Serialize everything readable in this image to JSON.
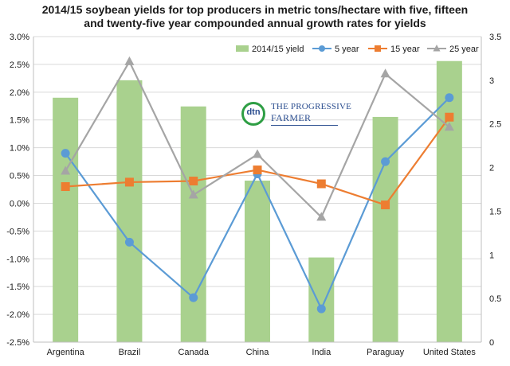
{
  "chart_data": {
    "type": "bar",
    "title_lines": [
      "2014/15 soybean yields for top producers in metric tons/hectare with five, fifteen",
      "and twenty-five year compounded annual growth rates for yields"
    ],
    "categories": [
      "Argentina",
      "Brazil",
      "Canada",
      "China",
      "India",
      "Paraguay",
      "United States"
    ],
    "left_axis": {
      "min": -0.025,
      "max": 0.03,
      "step": 0.005,
      "tick_labels": [
        "-2.5%",
        "-2.0%",
        "-1.5%",
        "-1.0%",
        "-0.5%",
        "0.0%",
        "0.5%",
        "1.0%",
        "1.5%",
        "2.0%",
        "2.5%",
        "3.0%"
      ]
    },
    "right_axis": {
      "min": 0,
      "max": 3.5,
      "step": 0.5,
      "tick_labels": [
        "0",
        "0.5",
        "1",
        "1.5",
        "2",
        "2.5",
        "3",
        "3.5"
      ]
    },
    "bar_series": {
      "name": "2014/15 yield",
      "axis": "right",
      "color": "#a9d18e",
      "values": [
        2.8,
        3.0,
        2.7,
        1.85,
        0.97,
        2.58,
        3.22
      ]
    },
    "line_series": [
      {
        "name": "5 year",
        "axis": "left",
        "color": "#5b9bd5",
        "marker": "circle",
        "values": [
          0.009,
          -0.007,
          -0.017,
          0.0053,
          -0.019,
          0.0075,
          0.019
        ]
      },
      {
        "name": "15 year",
        "axis": "left",
        "color": "#ed7d31",
        "marker": "square",
        "values": [
          0.003,
          0.0038,
          0.004,
          0.006,
          0.0035,
          -0.0003,
          0.0155
        ]
      },
      {
        "name": "25 year",
        "axis": "left",
        "color": "#a5a5a5",
        "marker": "triangle",
        "values": [
          0.0058,
          0.0255,
          0.0015,
          0.0088,
          -0.0025,
          0.0233,
          0.0137
        ]
      }
    ],
    "legend_order": [
      "2014/15 yield",
      "5 year",
      "15 year",
      "25 year"
    ],
    "legend_position": "top",
    "grid": "horizontal"
  },
  "logo": {
    "dtn": "dtn",
    "brand_top": "THE PROGRESSIVE",
    "brand_bottom": "FARMER"
  }
}
